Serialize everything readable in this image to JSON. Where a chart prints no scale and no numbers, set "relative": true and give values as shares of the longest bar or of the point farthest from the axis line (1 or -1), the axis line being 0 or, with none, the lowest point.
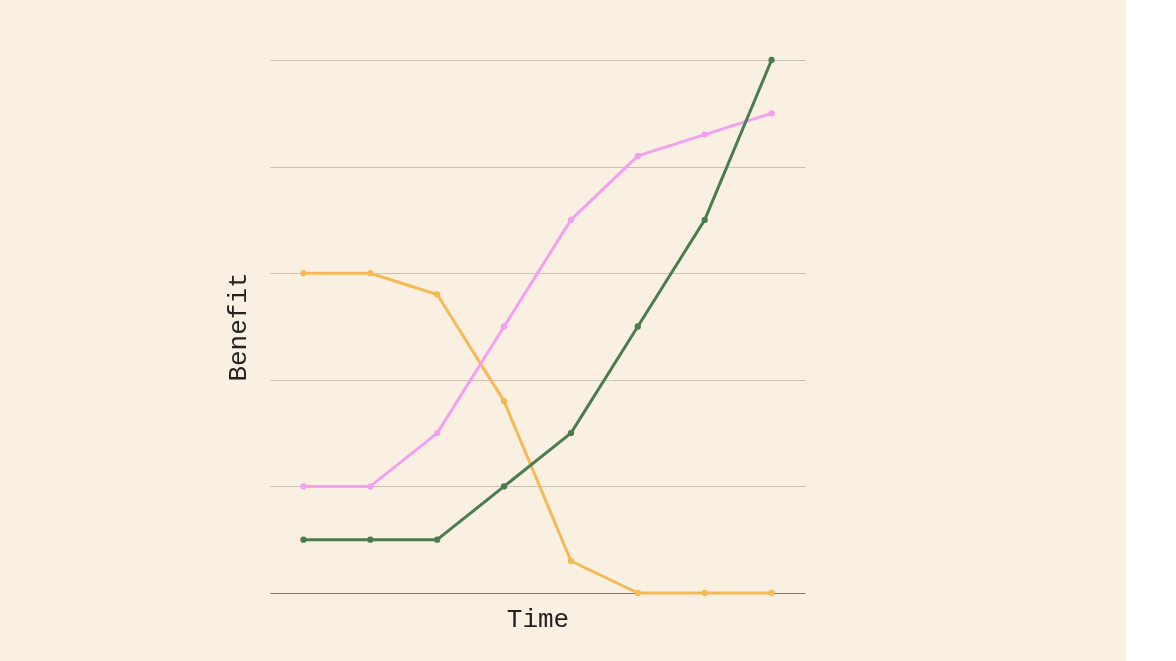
{
  "chart_data": {
    "type": "line",
    "relative": true,
    "xlabel": "Time",
    "ylabel": "Benefit",
    "categories": [
      null,
      null,
      null,
      null,
      null,
      null,
      null,
      null
    ],
    "series": [
      {
        "color": "#f5b955",
        "values": [
          0.6,
          0.6,
          0.56,
          0.36,
          0.06,
          0,
          0,
          0
        ]
      },
      {
        "color": "#f4a0f0",
        "values": [
          0.2,
          0.2,
          0.3,
          0.5,
          0.7,
          0.82,
          0.86,
          0.9
        ]
      },
      {
        "color": "#4a7c4e",
        "values": [
          0.1,
          0.1,
          0.1,
          0.2,
          0.3,
          0.5,
          0.7,
          1
        ]
      }
    ],
    "grid": "y",
    "marker": "circle",
    "line_style": "solid"
  }
}
